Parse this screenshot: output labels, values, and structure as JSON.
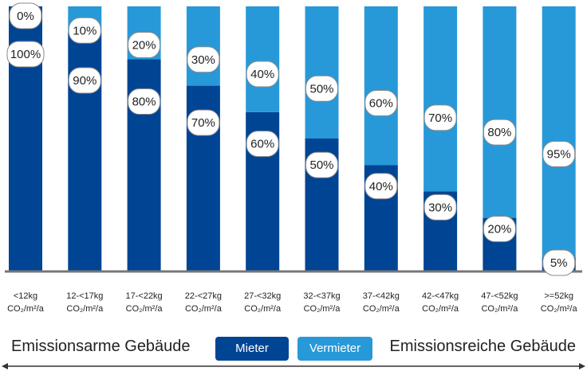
{
  "colors": {
    "mieter": "#004494",
    "vermieter": "#2899d8",
    "axis": "#777777",
    "label_border": "#888888"
  },
  "legend": {
    "mieter": "Mieter",
    "vermieter": "Vermieter"
  },
  "labels": {
    "left": "Emissionsarme Gebäude",
    "right": "Emissionsreiche Gebäude"
  },
  "chart_data": {
    "type": "bar",
    "stacked": true,
    "ylim": [
      0,
      100
    ],
    "unit": "%",
    "categories": [
      "<12kg",
      "12-<17kg",
      "17-<22kg",
      "22-<27kg",
      "27-<32kg",
      "32-<37kg",
      "37-<42kg",
      "42-<47kg",
      "47-<52kg",
      ">=52kg"
    ],
    "category_unit": "CO₂/m²/a",
    "series": [
      {
        "name": "Mieter",
        "values": [
          100,
          90,
          80,
          70,
          60,
          50,
          40,
          30,
          20,
          5
        ]
      },
      {
        "name": "Vermieter",
        "values": [
          0,
          10,
          20,
          30,
          40,
          50,
          60,
          70,
          80,
          95
        ]
      }
    ]
  }
}
